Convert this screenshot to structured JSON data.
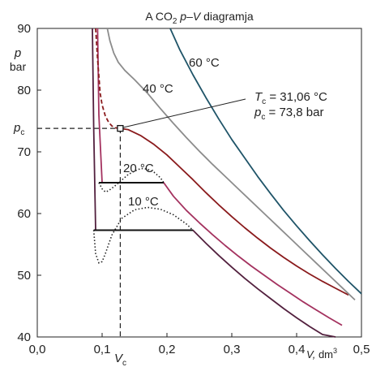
{
  "chart_data": {
    "type": "line",
    "title_prefix": "A CO",
    "title_sub": "2",
    "title_p": "p",
    "title_dash": "–",
    "title_V": "V",
    "title_suffix": " diagramja",
    "ylabel": "p",
    "yunit": "bar",
    "xlabel_var": "V,",
    "xlabel_unit": " dm",
    "xlabel_exp": "3",
    "xlim": [
      0.0,
      0.5
    ],
    "ylim": [
      40,
      90
    ],
    "x_ticks": [
      "0,0",
      "0,1",
      "0,2",
      "0,3",
      "0,4",
      "0,5"
    ],
    "y_ticks": [
      "40",
      "50",
      "60",
      "70",
      "80",
      "90"
    ],
    "grid": false,
    "critical_point": {
      "V": 0.128,
      "p": 73.8,
      "p_symbol": "p",
      "p_sub": "c",
      "V_symbol": "V",
      "V_sub": "c",
      "Tc_symbol": "T",
      "Tc_sub": "c",
      "Tc_value": " = 31,06 °C",
      "pc_symbol": "p",
      "pc_sub": "c",
      "pc_value": " = 73,8 bar"
    },
    "series": [
      {
        "name": "10 °C",
        "color": "#52203e",
        "x": [
          0.085,
          0.087,
          0.09,
          0.095,
          0.105,
          0.12,
          0.14,
          0.16,
          0.18,
          0.2,
          0.22,
          0.24,
          0.26,
          0.28,
          0.3,
          0.32,
          0.34,
          0.36,
          0.38,
          0.4,
          0.42,
          0.44,
          0.46
        ],
        "y": [
          90,
          74,
          57.3,
          57.3,
          57.3,
          57.3,
          57.3,
          57.3,
          57.3,
          57.3,
          57.3,
          57.3,
          55.2,
          53.2,
          51.3,
          49.5,
          47.8,
          46.2,
          44.6,
          43.1,
          41.7,
          40.4,
          39.2
        ],
        "dotted_x": [
          0.087,
          0.09,
          0.095,
          0.1,
          0.105,
          0.115,
          0.13,
          0.15,
          0.17,
          0.19,
          0.21,
          0.23,
          0.24
        ],
        "dotted_y": [
          57.3,
          53.5,
          52.0,
          52.2,
          53.5,
          56.5,
          59.2,
          60.6,
          61.0,
          60.7,
          59.8,
          58.3,
          57.3
        ]
      },
      {
        "name": "20 °C",
        "color": "#a4325f",
        "x": [
          0.093,
          0.095,
          0.1,
          0.12,
          0.14,
          0.16,
          0.18,
          0.195,
          0.21,
          0.23,
          0.25,
          0.27,
          0.29,
          0.31,
          0.33,
          0.35,
          0.37,
          0.39,
          0.41,
          0.43,
          0.45,
          0.47
        ],
        "y": [
          90,
          76,
          65.0,
          65.0,
          65.0,
          65.0,
          65.0,
          65.0,
          62.8,
          60.5,
          58.5,
          56.6,
          54.8,
          53.1,
          51.5,
          50.0,
          48.5,
          47.1,
          45.7,
          44.4,
          43.1,
          41.9
        ],
        "dotted_x": [
          0.095,
          0.1,
          0.105,
          0.11,
          0.12,
          0.13,
          0.14,
          0.15,
          0.16,
          0.17,
          0.18,
          0.19,
          0.195
        ],
        "dotted_y": [
          65.0,
          64.0,
          63.5,
          63.7,
          64.5,
          65.4,
          66.3,
          66.9,
          67.3,
          67.2,
          66.7,
          65.8,
          65.0
        ]
      },
      {
        "name": "31,06 °C",
        "color": "#8a1a1c",
        "x": [
          0.128,
          0.14,
          0.16,
          0.18,
          0.2,
          0.22,
          0.24,
          0.26,
          0.28,
          0.3,
          0.32,
          0.34,
          0.36,
          0.38,
          0.4,
          0.42,
          0.44,
          0.46,
          0.48
        ],
        "y": [
          73.8,
          73.6,
          72.6,
          71.2,
          69.5,
          67.5,
          65.5,
          63.4,
          61.4,
          59.5,
          57.7,
          56.0,
          54.4,
          52.9,
          51.5,
          50.2,
          49.0,
          47.9,
          46.8
        ],
        "dashed_x": [
          0.09,
          0.093,
          0.097,
          0.1,
          0.105,
          0.11,
          0.115,
          0.12,
          0.128
        ],
        "dashed_y": [
          90,
          85,
          79.5,
          77.6,
          75.8,
          74.8,
          74.2,
          73.9,
          73.8
        ]
      },
      {
        "name": "40 °C",
        "color": "#8c8c8c",
        "x": [
          0.108,
          0.112,
          0.118,
          0.125,
          0.135,
          0.15,
          0.17,
          0.19,
          0.21,
          0.23,
          0.25,
          0.27,
          0.29,
          0.31,
          0.33,
          0.35,
          0.37,
          0.39,
          0.41,
          0.43,
          0.45,
          0.47,
          0.49
        ],
        "y": [
          90,
          88.0,
          86.0,
          84.5,
          83.2,
          81.7,
          79.5,
          77.0,
          74.6,
          72.3,
          70.1,
          68.0,
          66.0,
          64.0,
          62.0,
          60.0,
          58.0,
          56.0,
          54.0,
          52.0,
          50.0,
          48.0,
          46.0
        ]
      },
      {
        "name": "60 °C",
        "color": "#1f5468",
        "x": [
          0.205,
          0.22,
          0.24,
          0.26,
          0.28,
          0.3,
          0.32,
          0.34,
          0.36,
          0.38,
          0.4,
          0.42,
          0.44,
          0.46,
          0.48,
          0.5
        ],
        "y": [
          90,
          86.5,
          82.5,
          78.8,
          75.3,
          72.0,
          69.0,
          66.0,
          63.2,
          60.5,
          58.0,
          55.6,
          53.3,
          51.1,
          49.0,
          47.0
        ]
      }
    ]
  }
}
